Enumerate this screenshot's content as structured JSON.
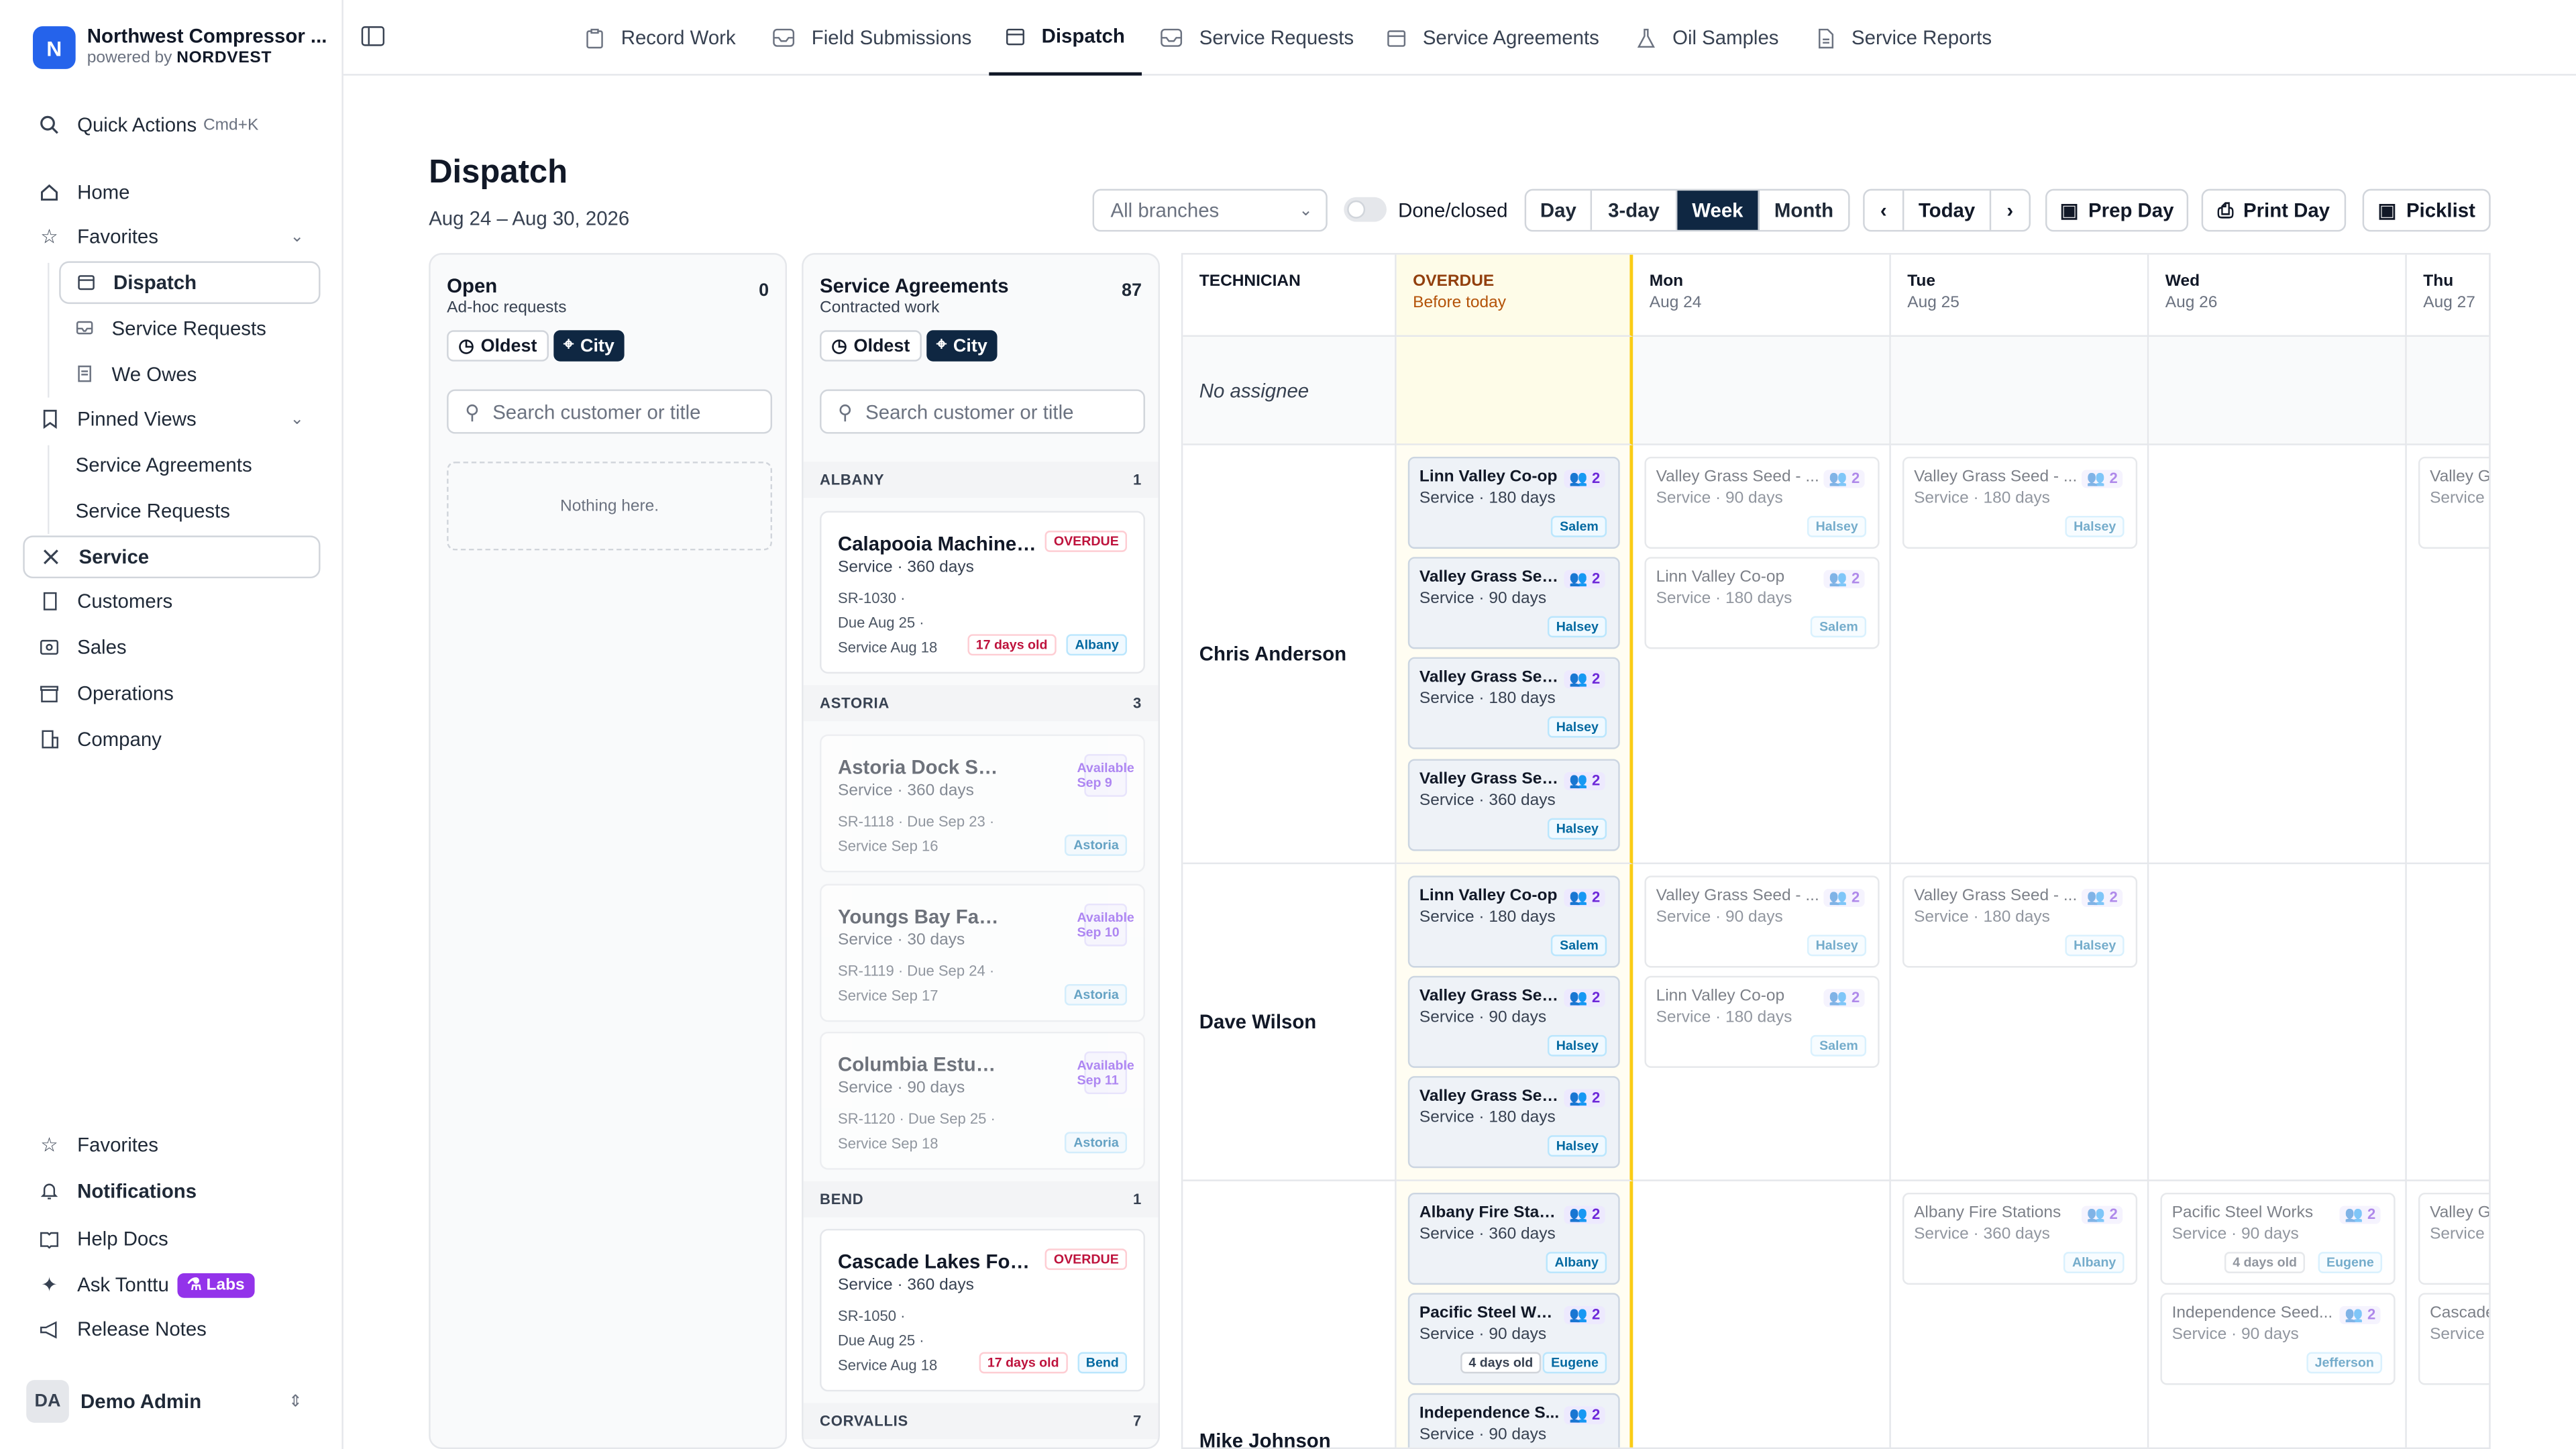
{
  "brand": {
    "logo": "N",
    "name": "Northwest Compressor ...",
    "powered": "powered by",
    "company": "NORDVEST"
  },
  "nav": {
    "quick": "Quick Actions",
    "shortcut": "Cmd+K",
    "home": "Home",
    "favorites": "Favorites",
    "fav_items": [
      "Dispatch",
      "Service Requests",
      "We Owes"
    ],
    "pinned": "Pinned Views",
    "pinned_items": [
      "Service Agreements",
      "Service Requests"
    ],
    "service": "Service",
    "customers": "Customers",
    "sales": "Sales",
    "operations": "Operations",
    "company": "Company",
    "b_favorites": "Favorites",
    "notifications": "Notifications",
    "help": "Help Docs",
    "ask": "Ask Tonttu",
    "labs": "Labs",
    "release": "Release Notes",
    "user_initials": "DA",
    "user_name": "Demo Admin"
  },
  "tabs": [
    "Record Work",
    "Field Submissions",
    "Dispatch",
    "Service Requests",
    "Service Agreements",
    "Oil Samples",
    "Service Reports"
  ],
  "page": {
    "title": "Dispatch",
    "range": "Aug 24 – Aug 30, 2026"
  },
  "controls": {
    "branches": "All branches",
    "done": "Done/closed",
    "views": [
      "Day",
      "3-day",
      "Week",
      "Month"
    ],
    "prev": "‹",
    "today": "Today",
    "next": "›",
    "prep": "Prep Day",
    "print": "Print Day",
    "picklist": "Picklist"
  },
  "open": {
    "title": "Open",
    "sub": "Ad-hoc requests",
    "count": "0",
    "oldest": "Oldest",
    "city": "City",
    "search": "Search customer or title",
    "empty": "Nothing here."
  },
  "sa": {
    "title": "Service Agreements",
    "sub": "Contracted work",
    "count": "87",
    "oldest": "Oldest",
    "city": "City",
    "search": "Search customer or title",
    "groups": [
      {
        "name": "ALBANY",
        "count": "1"
      },
      {
        "name": "ASTORIA",
        "count": "3"
      },
      {
        "name": "BEND",
        "count": "1"
      },
      {
        "name": "CORVALLIS",
        "count": "7"
      }
    ],
    "cards": [
      {
        "title": "Calapooia Machine W...",
        "sub": "Service · 360 days",
        "tag": "OVERDUE",
        "l1": "SR-1030  ·",
        "l2": "Due Aug 25  ·",
        "l3": "Service Aug 18",
        "age": "17 days old",
        "city": "Albany"
      },
      {
        "title": "Astoria Dock Ser...",
        "sub": "Service · 360 days",
        "tag": "Available Sep 9",
        "l1": "SR-1118  ·  Due Sep 23  ·",
        "l3": "Service Sep 16",
        "city": "Astoria"
      },
      {
        "title": "Youngs Bay Fabr...",
        "sub": "Service · 30 days",
        "tag": "Available Sep 10",
        "l1": "SR-1119  ·  Due Sep 24  ·",
        "l3": "Service Sep 17",
        "city": "Astoria"
      },
      {
        "title": "Columbia Estuar...",
        "sub": "Service · 90 days",
        "tag": "Available Sep 11",
        "l1": "SR-1120  ·  Due Sep 25  ·",
        "l3": "Service Sep 18",
        "city": "Astoria"
      },
      {
        "title": "Cascade Lakes Foods",
        "sub": "Service · 360 days",
        "tag": "OVERDUE",
        "l1": "SR-1050  ·",
        "l2": "Due Aug 25  ·",
        "l3": "Service Aug 18",
        "age": "17 days old",
        "city": "Bend"
      }
    ]
  },
  "grid": {
    "tech_header": "TECHNICIAN",
    "overdue": "OVERDUE",
    "overdue_sub": "Before today",
    "days": [
      {
        "d": "Mon",
        "dt": "Aug 24"
      },
      {
        "d": "Tue",
        "dt": "Aug 25"
      },
      {
        "d": "Wed",
        "dt": "Aug 26"
      },
      {
        "d": "Thu",
        "dt": "Aug 27"
      }
    ],
    "no_assignee": "No assignee",
    "techs": [
      "Chris Anderson",
      "Dave Wilson",
      "Mike Johnson"
    ],
    "jobs": [
      {
        "t": "Linn Valley Co-op",
        "s": "Service · 180 days",
        "c": "Salem",
        "n": "2"
      },
      {
        "t": "Valley Grass See...",
        "s": "Service · 90 days",
        "c": "Halsey",
        "n": "2"
      },
      {
        "t": "Valley Grass See...",
        "s": "Service · 180 days",
        "c": "Halsey",
        "n": "2"
      },
      {
        "t": "Valley Grass Seed",
        "s": "Service · 360 days",
        "c": "Halsey",
        "n": "2"
      },
      {
        "t": "Valley Grass Seed - ...",
        "s": "Service · 90 days",
        "c": "Halsey",
        "n": "2"
      },
      {
        "t": "Linn Valley Co-op",
        "s": "Service · 180 days",
        "c": "Salem",
        "n": "2"
      },
      {
        "t": "Valley Grass Seed - ...",
        "s": "Service · 180 days",
        "c": "Halsey",
        "n": "2"
      },
      {
        "t": "Valley Gr...",
        "s": "Service ·",
        "c": "",
        "n": ""
      },
      {
        "t": "Linn Valley Co-op",
        "s": "Service · 180 days",
        "c": "Salem",
        "n": "2"
      },
      {
        "t": "Valley Grass See...",
        "s": "Service · 90 days",
        "c": "Halsey",
        "n": "2"
      },
      {
        "t": "Valley Grass See...",
        "s": "Service · 180 days",
        "c": "Halsey",
        "n": "2"
      },
      {
        "t": "Valley Grass Seed - ...",
        "s": "Service · 90 days",
        "c": "Halsey",
        "n": "2"
      },
      {
        "t": "Linn Valley Co-op",
        "s": "Service · 180 days",
        "c": "Salem",
        "n": "2"
      },
      {
        "t": "Valley Grass Seed - ...",
        "s": "Service · 180 days",
        "c": "Halsey",
        "n": "2"
      },
      {
        "t": "Albany Fire Stati...",
        "s": "Service · 360 days",
        "c": "Albany",
        "n": "2"
      },
      {
        "t": "Pacific Steel Wor...",
        "s": "Service · 90 days",
        "c": "Eugene",
        "n": "2",
        "age": "4 days old"
      },
      {
        "t": "Independence S...",
        "s": "Service · 90 days",
        "c": "",
        "n": "2"
      },
      {
        "t": "Albany Fire Stations",
        "s": "Service · 360 days",
        "c": "Albany",
        "n": "2"
      },
      {
        "t": "Pacific Steel Works",
        "s": "Service · 90 days",
        "c": "Eugene",
        "n": "2",
        "age": "4 days old"
      },
      {
        "t": "Independence Seed...",
        "s": "Service · 90 days",
        "c": "Jefferson",
        "n": "2"
      },
      {
        "t": "Valley Gr...",
        "s": "Service ·",
        "c": "",
        "n": ""
      },
      {
        "t": "Cascade...",
        "s": "Service ·",
        "c": "",
        "n": ""
      }
    ]
  }
}
